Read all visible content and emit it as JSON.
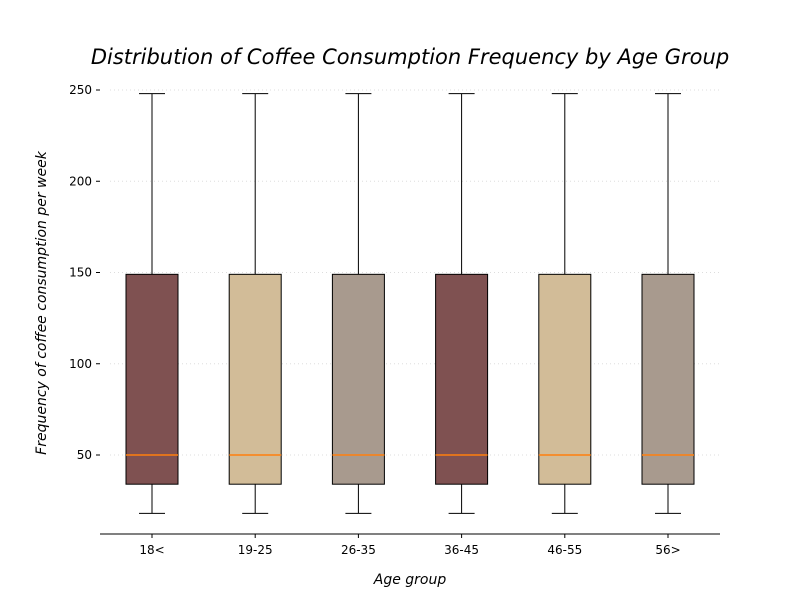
{
  "chart_data": {
    "type": "box",
    "title": "Distribution of Coffee Consumption Frequency by Age Group",
    "xlabel": "Age group",
    "ylabel": "Frequency of coffee consumption per week",
    "categories": [
      "18<",
      "19-25",
      "26-35",
      "36-45",
      "46-55",
      "56>"
    ],
    "ylim": [
      5,
      255
    ],
    "yticks": [
      50,
      100,
      150,
      200,
      250
    ],
    "grid": "horizontal-dotted",
    "boxes": [
      {
        "category": "18<",
        "whisker_low": 18,
        "q1": 34,
        "median": 50,
        "q3": 149,
        "whisker_high": 248
      },
      {
        "category": "19-25",
        "whisker_low": 18,
        "q1": 34,
        "median": 50,
        "q3": 149,
        "whisker_high": 248
      },
      {
        "category": "26-35",
        "whisker_low": 18,
        "q1": 34,
        "median": 50,
        "q3": 149,
        "whisker_high": 248
      },
      {
        "category": "36-45",
        "whisker_low": 18,
        "q1": 34,
        "median": 50,
        "q3": 149,
        "whisker_high": 248
      },
      {
        "category": "46-55",
        "whisker_low": 18,
        "q1": 34,
        "median": 50,
        "q3": 149,
        "whisker_high": 248
      },
      {
        "category": "56>",
        "whisker_low": 18,
        "q1": 34,
        "median": 50,
        "q3": 149,
        "whisker_high": 248
      }
    ],
    "colors": {
      "box_fills": [
        "#7f5151",
        "#d2bc98",
        "#a89a8e",
        "#7f5151",
        "#d2bc98",
        "#a89a8e"
      ],
      "median": "#ff7f0e",
      "edge": "#000000",
      "grid": "#dddddd"
    }
  }
}
